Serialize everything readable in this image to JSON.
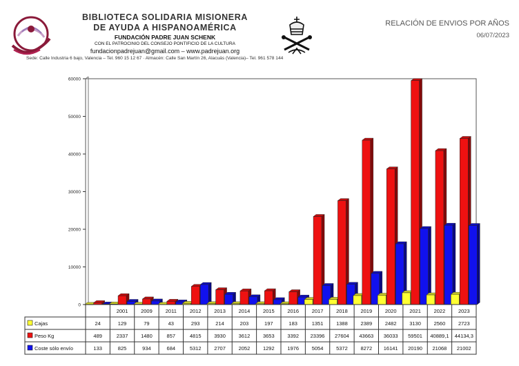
{
  "header": {
    "org_line1": "BIBLIOTECA SOLIDARIA MISIONERA",
    "org_line2": "DE AYUDA A HISPANOAMÉRICA",
    "foundation": "FUNDACIÓN PADRE JUAN SCHENK",
    "patronage": "CON EL PATROCINIO DEL CONSEJO PONTIFICIO DE LA CULTURA",
    "contact": "fundacionpadrejuan@gmail.com – www.padrejuan.org",
    "address": "Sede: Calle Industria 6 bajo, Valencia – Tel. 960 15 12 67  ·  Almacén: Calle San Martín 26, Alacuás (Valencia)– Tel. 961 578 144",
    "report_title": "RELACIÓN DE ENVIOS POR AÑOS",
    "report_date": "06/07/2023"
  },
  "colors": {
    "cajas": "#ffff33",
    "peso": "#ee1111",
    "coste": "#1111ee"
  },
  "chart_data": {
    "type": "bar",
    "categories": [
      "",
      "2001",
      "2009",
      "2011",
      "2012",
      "2013",
      "2014",
      "2015",
      "2016",
      "2017",
      "2018",
      "2019",
      "2020",
      "2021",
      "2022",
      "2023"
    ],
    "ylim": [
      0,
      60000
    ],
    "yticks": [
      0,
      10000,
      20000,
      30000,
      40000,
      50000,
      60000
    ],
    "ytick_labels": [
      "0",
      "10000",
      "20000",
      "30000",
      "40000",
      "50000",
      "60000"
    ],
    "series": [
      {
        "name": "Cajas",
        "values": [
          24,
          129,
          79,
          43,
          293,
          214,
          203,
          197,
          183,
          1351,
          1388,
          2389,
          2482,
          3130,
          2560,
          2723
        ],
        "labels": [
          "24",
          "129",
          "79",
          "43",
          "293",
          "214",
          "203",
          "197",
          "183",
          "1351",
          "1388",
          "2389",
          "2482",
          "3130",
          "2560",
          "2723"
        ]
      },
      {
        "name": "Peso Kg",
        "values": [
          489,
          2337,
          1480,
          857,
          4815,
          3930,
          3612,
          3653,
          3392,
          23396,
          27604,
          43663,
          36033,
          59501,
          40889.1,
          44134.3
        ],
        "labels": [
          "489",
          "2337",
          "1480",
          "857",
          "4815",
          "3930",
          "3612",
          "3653",
          "3392",
          "23396",
          "27604",
          "43663",
          "36033",
          "59501",
          "40889,1",
          "44134,3"
        ]
      },
      {
        "name": "Coste sólo envío",
        "values": [
          133,
          825,
          934,
          684,
          5312,
          2707,
          2052,
          1292,
          1976,
          5054,
          5372,
          8272,
          16141,
          20190,
          21068,
          21002
        ],
        "labels": [
          "133",
          "825",
          "934",
          "684",
          "5312",
          "2707",
          "2052",
          "1292",
          "1976",
          "5054",
          "5372",
          "8272",
          "16141",
          "20190",
          "21068",
          "21002"
        ]
      }
    ]
  }
}
